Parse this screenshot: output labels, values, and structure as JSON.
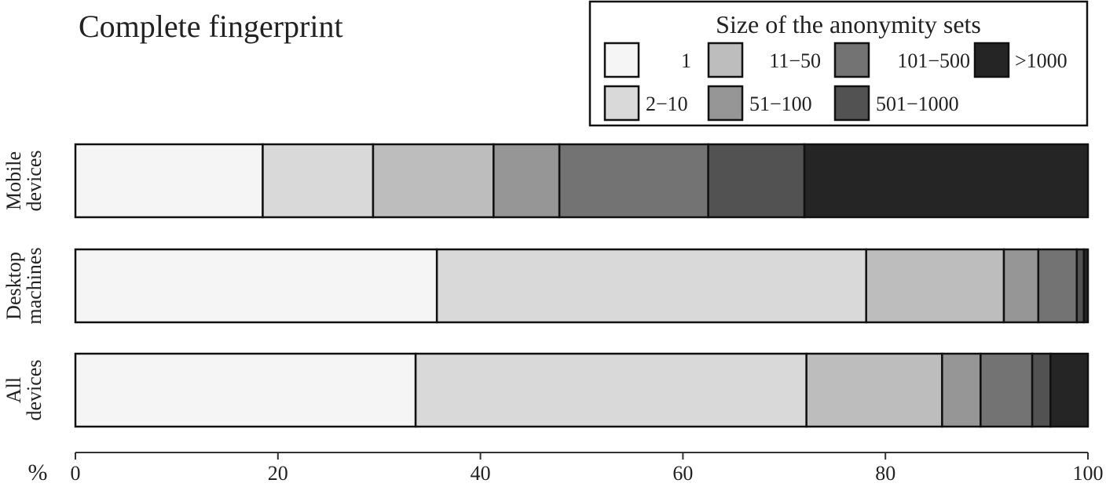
{
  "chart_data": {
    "type": "bar",
    "orientation": "horizontal",
    "stacked": true,
    "title": "Complete fingerprint",
    "xlabel": "%",
    "xlim": [
      0,
      100
    ],
    "xticks": [
      0,
      20,
      40,
      60,
      80,
      100
    ],
    "legend": {
      "title": "Size of the anonymity sets",
      "placement": "top-right"
    },
    "categories": [
      [
        "Mobile",
        "devices"
      ],
      [
        "Desktop",
        "machines"
      ],
      [
        "All",
        "devices"
      ]
    ],
    "series": [
      {
        "name": "1",
        "color": "#f5f5f5",
        "values": [
          18.5,
          35.7,
          33.6
        ]
      },
      {
        "name": "2−10",
        "color": "#d9d9d9",
        "values": [
          10.9,
          42.4,
          38.6
        ]
      },
      {
        "name": "11−50",
        "color": "#bdbdbd",
        "values": [
          11.9,
          13.6,
          13.4
        ]
      },
      {
        "name": "51−100",
        "color": "#969696",
        "values": [
          6.5,
          3.4,
          3.8
        ]
      },
      {
        "name": "101−500",
        "color": "#737373",
        "values": [
          14.7,
          3.8,
          5.1
        ]
      },
      {
        "name": "501−1000",
        "color": "#525252",
        "values": [
          9.5,
          0.7,
          1.8
        ]
      },
      {
        "name": ">1000",
        "color": "#252525",
        "values": [
          28.0,
          0.4,
          3.7
        ]
      }
    ]
  }
}
